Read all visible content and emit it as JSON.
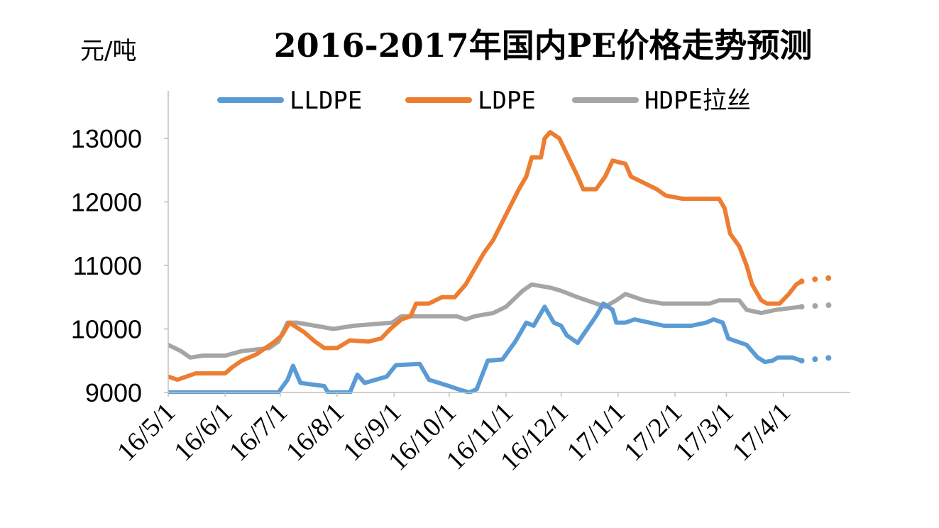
{
  "chart_data": {
    "type": "line",
    "title": "2016-2017年国内PE价格走势预测",
    "ylabel": "元/吨",
    "ylim": [
      9000,
      13000
    ],
    "yticks": [
      "9000",
      "10000",
      "11000",
      "12000",
      "13000"
    ],
    "xticks": [
      "16/5/1",
      "16/6/1",
      "16/7/1",
      "16/8/1",
      "16/9/1",
      "16/10/1",
      "16/11/1",
      "16/12/1",
      "17/1/1",
      "17/2/1",
      "17/3/1",
      "17/4/1"
    ],
    "legend_position": "top",
    "grid": false,
    "series": [
      {
        "name": "LLDPE",
        "color": "#5b9bd5",
        "points": [
          [
            "2016-05-01",
            9000
          ],
          [
            "2016-06-30",
            9000
          ],
          [
            "2016-07-05",
            9200
          ],
          [
            "2016-07-08",
            9420
          ],
          [
            "2016-07-12",
            9150
          ],
          [
            "2016-07-25",
            9100
          ],
          [
            "2016-07-27",
            9000
          ],
          [
            "2016-08-08",
            9000
          ],
          [
            "2016-08-12",
            9280
          ],
          [
            "2016-08-16",
            9150
          ],
          [
            "2016-08-28",
            9250
          ],
          [
            "2016-09-02",
            9430
          ],
          [
            "2016-09-15",
            9450
          ],
          [
            "2016-09-20",
            9200
          ],
          [
            "2016-10-01",
            9100
          ],
          [
            "2016-10-06",
            9050
          ],
          [
            "2016-10-12",
            9000
          ],
          [
            "2016-10-16",
            9050
          ],
          [
            "2016-10-22",
            9500
          ],
          [
            "2016-10-30",
            9520
          ],
          [
            "2016-11-06",
            9800
          ],
          [
            "2016-11-12",
            10100
          ],
          [
            "2016-11-16",
            10050
          ],
          [
            "2016-11-22",
            10350
          ],
          [
            "2016-11-27",
            10100
          ],
          [
            "2016-12-01",
            10050
          ],
          [
            "2016-12-04",
            9900
          ],
          [
            "2016-12-10",
            9780
          ],
          [
            "2016-12-14",
            9950
          ],
          [
            "2016-12-20",
            10200
          ],
          [
            "2016-12-24",
            10400
          ],
          [
            "2016-12-29",
            10300
          ],
          [
            "2016-12-31",
            10100
          ],
          [
            "2017-01-05",
            10100
          ],
          [
            "2017-01-10",
            10150
          ],
          [
            "2017-01-18",
            10100
          ],
          [
            "2017-01-26",
            10050
          ],
          [
            "2017-02-10",
            10050
          ],
          [
            "2017-02-18",
            10100
          ],
          [
            "2017-02-22",
            10150
          ],
          [
            "2017-02-27",
            10100
          ],
          [
            "2017-03-02",
            9850
          ],
          [
            "2017-03-12",
            9750
          ],
          [
            "2017-03-18",
            9550
          ],
          [
            "2017-03-22",
            9480
          ],
          [
            "2017-03-26",
            9500
          ],
          [
            "2017-03-29",
            9550
          ],
          [
            "2017-04-06",
            9550
          ],
          [
            "2017-04-11",
            9500
          ]
        ],
        "forecast": [
          [
            "2017-04-11",
            9500
          ],
          [
            "2017-04-17",
            9520
          ],
          [
            "2017-04-23",
            9540
          ],
          [
            "2017-04-30",
            9550
          ]
        ]
      },
      {
        "name": "LDPE",
        "color": "#ed7d31",
        "points": [
          [
            "2016-05-01",
            9250
          ],
          [
            "2016-05-06",
            9200
          ],
          [
            "2016-05-16",
            9300
          ],
          [
            "2016-06-01",
            9300
          ],
          [
            "2016-06-05",
            9400
          ],
          [
            "2016-06-10",
            9500
          ],
          [
            "2016-06-18",
            9600
          ],
          [
            "2016-06-28",
            9800
          ],
          [
            "2016-07-02",
            9900
          ],
          [
            "2016-07-06",
            10100
          ],
          [
            "2016-07-14",
            9950
          ],
          [
            "2016-07-20",
            9800
          ],
          [
            "2016-07-25",
            9700
          ],
          [
            "2016-08-01",
            9700
          ],
          [
            "2016-08-08",
            9820
          ],
          [
            "2016-08-18",
            9800
          ],
          [
            "2016-08-25",
            9850
          ],
          [
            "2016-08-30",
            10000
          ],
          [
            "2016-09-05",
            10150
          ],
          [
            "2016-09-10",
            10200
          ],
          [
            "2016-09-13",
            10400
          ],
          [
            "2016-09-20",
            10400
          ],
          [
            "2016-09-27",
            10500
          ],
          [
            "2016-10-04",
            10500
          ],
          [
            "2016-10-10",
            10700
          ],
          [
            "2016-10-20",
            11200
          ],
          [
            "2016-10-25",
            11400
          ],
          [
            "2016-11-01",
            11800
          ],
          [
            "2016-11-08",
            12200
          ],
          [
            "2016-11-12",
            12400
          ],
          [
            "2016-11-15",
            12700
          ],
          [
            "2016-11-20",
            12700
          ],
          [
            "2016-11-22",
            13000
          ],
          [
            "2016-11-25",
            13100
          ],
          [
            "2016-11-30",
            13000
          ],
          [
            "2016-12-05",
            12700
          ],
          [
            "2016-12-10",
            12400
          ],
          [
            "2016-12-13",
            12200
          ],
          [
            "2016-12-20",
            12200
          ],
          [
            "2016-12-25",
            12400
          ],
          [
            "2016-12-29",
            12650
          ],
          [
            "2017-01-05",
            12600
          ],
          [
            "2017-01-08",
            12400
          ],
          [
            "2017-01-15",
            12300
          ],
          [
            "2017-01-22",
            12200
          ],
          [
            "2017-01-27",
            12100
          ],
          [
            "2017-02-05",
            12050
          ],
          [
            "2017-02-25",
            12050
          ],
          [
            "2017-02-28",
            11900
          ],
          [
            "2017-03-03",
            11500
          ],
          [
            "2017-03-08",
            11300
          ],
          [
            "2017-03-12",
            11000
          ],
          [
            "2017-03-15",
            10700
          ],
          [
            "2017-03-20",
            10450
          ],
          [
            "2017-03-23",
            10400
          ],
          [
            "2017-03-30",
            10400
          ],
          [
            "2017-04-04",
            10550
          ],
          [
            "2017-04-08",
            10700
          ],
          [
            "2017-04-11",
            10750
          ]
        ],
        "forecast": [
          [
            "2017-04-11",
            10750
          ],
          [
            "2017-04-17",
            10780
          ],
          [
            "2017-04-23",
            10800
          ],
          [
            "2017-04-30",
            10800
          ]
        ]
      },
      {
        "name": "HDPE拉丝",
        "color": "#a5a5a5",
        "points": [
          [
            "2016-05-01",
            9750
          ],
          [
            "2016-05-08",
            9650
          ],
          [
            "2016-05-13",
            9550
          ],
          [
            "2016-05-20",
            9580
          ],
          [
            "2016-06-01",
            9580
          ],
          [
            "2016-06-10",
            9650
          ],
          [
            "2016-06-25",
            9700
          ],
          [
            "2016-06-30",
            9800
          ],
          [
            "2016-07-05",
            10100
          ],
          [
            "2016-07-10",
            10100
          ],
          [
            "2016-07-20",
            10050
          ],
          [
            "2016-07-30",
            10000
          ],
          [
            "2016-08-10",
            10050
          ],
          [
            "2016-08-31",
            10100
          ],
          [
            "2016-09-05",
            10200
          ],
          [
            "2016-09-20",
            10200
          ],
          [
            "2016-10-05",
            10200
          ],
          [
            "2016-10-10",
            10150
          ],
          [
            "2016-10-15",
            10200
          ],
          [
            "2016-10-25",
            10250
          ],
          [
            "2016-11-01",
            10350
          ],
          [
            "2016-11-10",
            10600
          ],
          [
            "2016-11-15",
            10700
          ],
          [
            "2016-11-25",
            10650
          ],
          [
            "2016-12-01",
            10600
          ],
          [
            "2016-12-10",
            10500
          ],
          [
            "2016-12-20",
            10400
          ],
          [
            "2016-12-25",
            10350
          ],
          [
            "2016-12-31",
            10450
          ],
          [
            "2017-01-05",
            10550
          ],
          [
            "2017-01-15",
            10450
          ],
          [
            "2017-01-25",
            10400
          ],
          [
            "2017-02-20",
            10400
          ],
          [
            "2017-02-25",
            10450
          ],
          [
            "2017-03-08",
            10450
          ],
          [
            "2017-03-12",
            10300
          ],
          [
            "2017-03-20",
            10250
          ],
          [
            "2017-03-28",
            10300
          ],
          [
            "2017-04-11",
            10350
          ]
        ],
        "forecast": [
          [
            "2017-04-11",
            10350
          ],
          [
            "2017-04-17",
            10360
          ],
          [
            "2017-04-23",
            10370
          ],
          [
            "2017-04-30",
            10380
          ]
        ]
      }
    ]
  }
}
